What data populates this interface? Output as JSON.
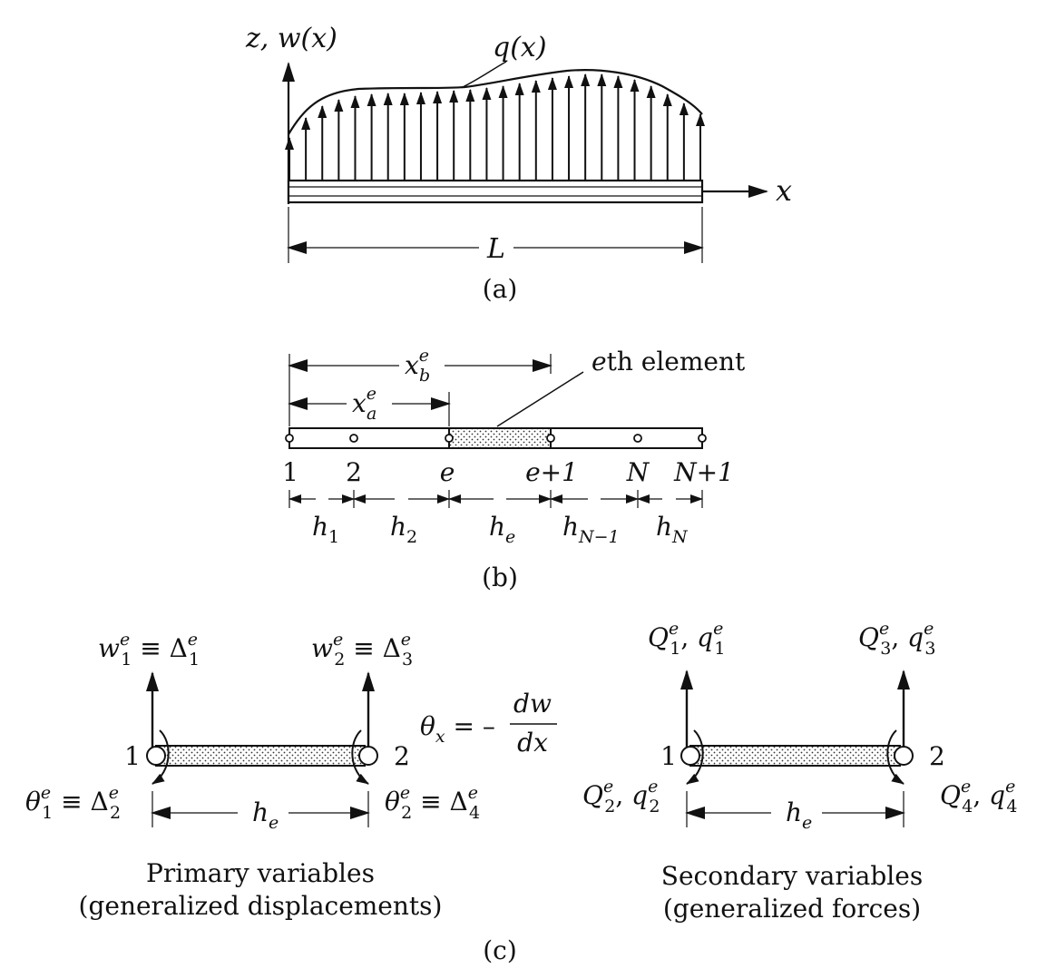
{
  "panel_a": {
    "axis_z": "z, w(x)",
    "load": "q(x)",
    "axis_x": "x",
    "length": "L",
    "caption": "(a)"
  },
  "panel_b": {
    "xb_base": "x",
    "xb_sup": "e",
    "xb_sub": "b",
    "xa_base": "x",
    "xa_sup": "e",
    "xa_sub": "a",
    "element_italic": "e",
    "element_rest": "th element",
    "nodes": [
      "1",
      "2",
      "e",
      "e+1",
      "N",
      "N+1"
    ],
    "spans": [
      {
        "base": "h",
        "sub": "1"
      },
      {
        "base": "h",
        "sub": "2"
      },
      {
        "base": "h",
        "sub": "e"
      },
      {
        "base": "h",
        "sub": "N−1"
      },
      {
        "base": "h",
        "sub": "N"
      }
    ],
    "caption": "(b)"
  },
  "panel_c": {
    "primary": {
      "w1": {
        "base": "w",
        "sup": "e",
        "sub": "1",
        "eq": " ≡ Δ",
        "dsup": "e",
        "dsub": "1"
      },
      "w2": {
        "base": "w",
        "sup": "e",
        "sub": "2",
        "eq": " ≡ Δ",
        "dsup": "e",
        "dsub": "3"
      },
      "t1": {
        "base": "θ",
        "sup": "e",
        "sub": "1",
        "eq": " ≡ Δ",
        "dsup": "e",
        "dsub": "2"
      },
      "t2": {
        "base": "θ",
        "sup": "e",
        "sub": "2",
        "eq": " ≡ Δ",
        "dsup": "e",
        "dsub": "4"
      },
      "node1": "1",
      "node2": "2",
      "length": {
        "base": "h",
        "sub": "e"
      },
      "title_line1": "Primary variables",
      "title_line2": "(generalized displacements)"
    },
    "theta": {
      "lhs": "θ",
      "lhs_sub": "x",
      "eq": " = – ",
      "num": "dw",
      "den": "dx"
    },
    "secondary": {
      "q1": {
        "Q": "Q",
        "Qsup": "e",
        "Qsub": "1",
        "sep": ", ",
        "q": "q",
        "qsup": "e",
        "qsub": "1"
      },
      "q3": {
        "Q": "Q",
        "Qsup": "e",
        "Qsub": "3",
        "sep": ", ",
        "q": "q",
        "qsup": "e",
        "qsub": "3"
      },
      "q2": {
        "Q": "Q",
        "Qsup": "e",
        "Qsub": "2",
        "sep": ", ",
        "q": "q",
        "qsup": "e",
        "qsub": "2"
      },
      "q4": {
        "Q": "Q",
        "Qsup": "e",
        "Qsub": "4",
        "sep": ", ",
        "q": "q",
        "qsup": "e",
        "qsub": "4"
      },
      "node1": "1",
      "node2": "2",
      "length": {
        "base": "h",
        "sub": "e"
      },
      "title_line1": "Secondary variables",
      "title_line2": "(generalized forces)"
    },
    "caption": "(c)"
  }
}
